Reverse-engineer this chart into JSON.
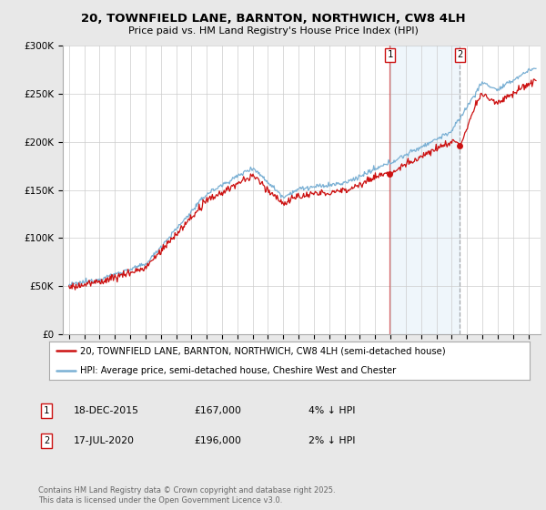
{
  "title": "20, TOWNFIELD LANE, BARNTON, NORTHWICH, CW8 4LH",
  "subtitle": "Price paid vs. HM Land Registry's House Price Index (HPI)",
  "background_color": "#e8e8e8",
  "plot_bg_color": "#ffffff",
  "ylim": [
    0,
    300000
  ],
  "yticks": [
    0,
    50000,
    100000,
    150000,
    200000,
    250000,
    300000
  ],
  "ytick_labels": [
    "£0",
    "£50K",
    "£100K",
    "£150K",
    "£200K",
    "£250K",
    "£300K"
  ],
  "hpi_color": "#7ab0d4",
  "price_color": "#cc1111",
  "marker1_date": 2015.96,
  "marker2_date": 2020.54,
  "marker1_price": 167000,
  "marker2_price": 196000,
  "legend_entries": [
    "20, TOWNFIELD LANE, BARNTON, NORTHWICH, CW8 4LH (semi-detached house)",
    "HPI: Average price, semi-detached house, Cheshire West and Chester"
  ],
  "annotation1_date": "18-DEC-2015",
  "annotation1_price": "£167,000",
  "annotation1_note": "4% ↓ HPI",
  "annotation2_date": "17-JUL-2020",
  "annotation2_price": "£196,000",
  "annotation2_note": "2% ↓ HPI",
  "footer": "Contains HM Land Registry data © Crown copyright and database right 2025.\nThis data is licensed under the Open Government Licence v3.0."
}
